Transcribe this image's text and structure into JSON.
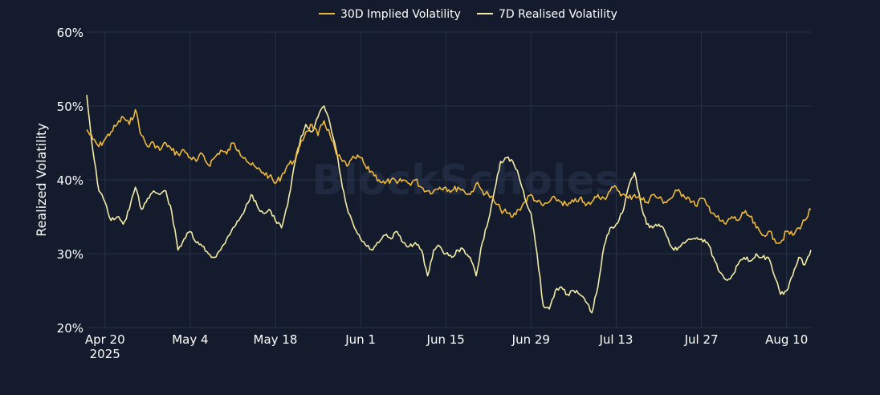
{
  "colors": {
    "background": "#131b2d",
    "grid": "#27334a",
    "text": "#ffffff",
    "watermark": "#2a3550",
    "series_implied": "#f0b93a",
    "series_realised": "#f3eba6"
  },
  "watermark": "BlockScholes",
  "chart_data": {
    "type": "line",
    "title": "",
    "xlabel": "",
    "ylabel": "Realized Volatility",
    "x_range": [
      "2025-04-17",
      "2025-08-14"
    ],
    "ylim": [
      20,
      60
    ],
    "y_ticks": [
      "20%",
      "30%",
      "40%",
      "50%",
      "60%"
    ],
    "x_ticks": [
      {
        "date": "2025-04-20",
        "label": "Apr 20",
        "sublabel": "2025"
      },
      {
        "date": "2025-05-04",
        "label": "May 4",
        "sublabel": ""
      },
      {
        "date": "2025-05-18",
        "label": "May 18",
        "sublabel": ""
      },
      {
        "date": "2025-06-01",
        "label": "Jun 1",
        "sublabel": ""
      },
      {
        "date": "2025-06-15",
        "label": "Jun 15",
        "sublabel": ""
      },
      {
        "date": "2025-06-29",
        "label": "Jun 29",
        "sublabel": ""
      },
      {
        "date": "2025-07-13",
        "label": "Jul 13",
        "sublabel": ""
      },
      {
        "date": "2025-07-27",
        "label": "Jul 27",
        "sublabel": ""
      },
      {
        "date": "2025-08-10",
        "label": "Aug 10",
        "sublabel": ""
      }
    ],
    "grid": true,
    "legend_position": "top-center",
    "series": [
      {
        "name": "30D Implied Volatility",
        "color_key": "series_implied",
        "points": [
          [
            "2025-04-17",
            46.8
          ],
          [
            "2025-04-18",
            45.5
          ],
          [
            "2025-04-19",
            44.5
          ],
          [
            "2025-04-20",
            45.5
          ],
          [
            "2025-04-21",
            46.5
          ],
          [
            "2025-04-22",
            47.5
          ],
          [
            "2025-04-23",
            48.5
          ],
          [
            "2025-04-24",
            47.5
          ],
          [
            "2025-04-25",
            49.5
          ],
          [
            "2025-04-26",
            46.0
          ],
          [
            "2025-04-27",
            44.5
          ],
          [
            "2025-04-28",
            45.0
          ],
          [
            "2025-04-29",
            44.0
          ],
          [
            "2025-04-30",
            45.0
          ],
          [
            "2025-05-01",
            44.0
          ],
          [
            "2025-05-02",
            43.5
          ],
          [
            "2025-05-03",
            44.0
          ],
          [
            "2025-05-04",
            43.0
          ],
          [
            "2025-05-05",
            42.5
          ],
          [
            "2025-05-06",
            43.5
          ],
          [
            "2025-05-07",
            42.0
          ],
          [
            "2025-05-08",
            43.0
          ],
          [
            "2025-05-09",
            44.0
          ],
          [
            "2025-05-10",
            43.5
          ],
          [
            "2025-05-11",
            45.0
          ],
          [
            "2025-05-12",
            44.0
          ],
          [
            "2025-05-13",
            43.0
          ],
          [
            "2025-05-14",
            42.0
          ],
          [
            "2025-05-15",
            41.5
          ],
          [
            "2025-05-16",
            41.0
          ],
          [
            "2025-05-17",
            40.5
          ],
          [
            "2025-05-18",
            39.5
          ],
          [
            "2025-05-19",
            40.5
          ],
          [
            "2025-05-20",
            42.0
          ],
          [
            "2025-05-21",
            42.5
          ],
          [
            "2025-05-22",
            44.5
          ],
          [
            "2025-05-23",
            46.5
          ],
          [
            "2025-05-24",
            47.5
          ],
          [
            "2025-05-25",
            46.0
          ],
          [
            "2025-05-26",
            48.0
          ],
          [
            "2025-05-27",
            46.0
          ],
          [
            "2025-05-28",
            43.5
          ],
          [
            "2025-05-29",
            42.5
          ],
          [
            "2025-05-30",
            42.0
          ],
          [
            "2025-05-31",
            43.0
          ],
          [
            "2025-06-01",
            43.0
          ],
          [
            "2025-06-02",
            41.5
          ],
          [
            "2025-06-03",
            41.0
          ],
          [
            "2025-06-04",
            40.0
          ],
          [
            "2025-06-05",
            39.5
          ],
          [
            "2025-06-06",
            40.0
          ],
          [
            "2025-06-07",
            39.5
          ],
          [
            "2025-06-08",
            40.0
          ],
          [
            "2025-06-09",
            39.5
          ],
          [
            "2025-06-10",
            40.0
          ],
          [
            "2025-06-11",
            39.0
          ],
          [
            "2025-06-12",
            38.5
          ],
          [
            "2025-06-13",
            38.5
          ],
          [
            "2025-06-14",
            39.0
          ],
          [
            "2025-06-15",
            39.0
          ],
          [
            "2025-06-16",
            38.5
          ],
          [
            "2025-06-17",
            39.0
          ],
          [
            "2025-06-18",
            38.5
          ],
          [
            "2025-06-19",
            38.0
          ],
          [
            "2025-06-20",
            39.5
          ],
          [
            "2025-06-21",
            38.5
          ],
          [
            "2025-06-22",
            38.0
          ],
          [
            "2025-06-23",
            37.0
          ],
          [
            "2025-06-24",
            36.0
          ],
          [
            "2025-06-25",
            35.5
          ],
          [
            "2025-06-26",
            35.0
          ],
          [
            "2025-06-27",
            36.0
          ],
          [
            "2025-06-28",
            37.0
          ],
          [
            "2025-06-29",
            38.0
          ],
          [
            "2025-06-30",
            37.0
          ],
          [
            "2025-07-01",
            36.5
          ],
          [
            "2025-07-02",
            37.0
          ],
          [
            "2025-07-03",
            37.5
          ],
          [
            "2025-07-04",
            37.0
          ],
          [
            "2025-07-05",
            36.5
          ],
          [
            "2025-07-06",
            37.0
          ],
          [
            "2025-07-07",
            37.5
          ],
          [
            "2025-07-08",
            36.5
          ],
          [
            "2025-07-09",
            37.0
          ],
          [
            "2025-07-10",
            38.0
          ],
          [
            "2025-07-11",
            37.5
          ],
          [
            "2025-07-12",
            38.5
          ],
          [
            "2025-07-13",
            39.0
          ],
          [
            "2025-07-14",
            38.0
          ],
          [
            "2025-07-15",
            37.5
          ],
          [
            "2025-07-16",
            38.0
          ],
          [
            "2025-07-17",
            37.5
          ],
          [
            "2025-07-18",
            37.0
          ],
          [
            "2025-07-19",
            38.0
          ],
          [
            "2025-07-20",
            37.5
          ],
          [
            "2025-07-21",
            37.0
          ],
          [
            "2025-07-22",
            37.5
          ],
          [
            "2025-07-23",
            38.5
          ],
          [
            "2025-07-24",
            38.0
          ],
          [
            "2025-07-25",
            37.5
          ],
          [
            "2025-07-26",
            36.5
          ],
          [
            "2025-07-27",
            37.5
          ],
          [
            "2025-07-28",
            36.5
          ],
          [
            "2025-07-29",
            35.5
          ],
          [
            "2025-07-30",
            34.5
          ],
          [
            "2025-07-31",
            34.0
          ],
          [
            "2025-08-01",
            35.0
          ],
          [
            "2025-08-02",
            34.5
          ],
          [
            "2025-08-03",
            35.5
          ],
          [
            "2025-08-04",
            35.0
          ],
          [
            "2025-08-05",
            33.5
          ],
          [
            "2025-08-06",
            32.5
          ],
          [
            "2025-08-07",
            33.0
          ],
          [
            "2025-08-08",
            32.0
          ],
          [
            "2025-08-09",
            31.5
          ],
          [
            "2025-08-10",
            33.0
          ],
          [
            "2025-08-11",
            32.5
          ],
          [
            "2025-08-12",
            33.5
          ],
          [
            "2025-08-13",
            34.5
          ],
          [
            "2025-08-14",
            36.0
          ]
        ]
      },
      {
        "name": "7D Realised Volatility",
        "color_key": "series_realised",
        "points": [
          [
            "2025-04-17",
            51.5
          ],
          [
            "2025-04-18",
            44.0
          ],
          [
            "2025-04-19",
            38.5
          ],
          [
            "2025-04-20",
            37.0
          ],
          [
            "2025-04-21",
            34.5
          ],
          [
            "2025-04-22",
            35.0
          ],
          [
            "2025-04-23",
            34.0
          ],
          [
            "2025-04-24",
            36.0
          ],
          [
            "2025-04-25",
            39.0
          ],
          [
            "2025-04-26",
            36.0
          ],
          [
            "2025-04-27",
            37.5
          ],
          [
            "2025-04-28",
            38.5
          ],
          [
            "2025-04-29",
            38.0
          ],
          [
            "2025-04-30",
            38.5
          ],
          [
            "2025-05-01",
            35.5
          ],
          [
            "2025-05-02",
            30.5
          ],
          [
            "2025-05-03",
            32.0
          ],
          [
            "2025-05-04",
            33.0
          ],
          [
            "2025-05-05",
            31.5
          ],
          [
            "2025-05-06",
            31.0
          ],
          [
            "2025-05-07",
            30.0
          ],
          [
            "2025-05-08",
            29.5
          ],
          [
            "2025-05-09",
            30.5
          ],
          [
            "2025-05-10",
            32.0
          ],
          [
            "2025-05-11",
            33.5
          ],
          [
            "2025-05-12",
            34.5
          ],
          [
            "2025-05-13",
            36.0
          ],
          [
            "2025-05-14",
            38.0
          ],
          [
            "2025-05-15",
            36.5
          ],
          [
            "2025-05-16",
            35.5
          ],
          [
            "2025-05-17",
            36.0
          ],
          [
            "2025-05-18",
            34.5
          ],
          [
            "2025-05-19",
            33.5
          ],
          [
            "2025-05-20",
            36.5
          ],
          [
            "2025-05-21",
            41.5
          ],
          [
            "2025-05-22",
            45.0
          ],
          [
            "2025-05-23",
            47.5
          ],
          [
            "2025-05-24",
            46.5
          ],
          [
            "2025-05-25",
            48.5
          ],
          [
            "2025-05-26",
            50.0
          ],
          [
            "2025-05-27",
            47.5
          ],
          [
            "2025-05-28",
            44.0
          ],
          [
            "2025-05-29",
            39.0
          ],
          [
            "2025-05-30",
            35.5
          ],
          [
            "2025-05-31",
            33.5
          ],
          [
            "2025-06-01",
            32.0
          ],
          [
            "2025-06-02",
            31.0
          ],
          [
            "2025-06-03",
            30.5
          ],
          [
            "2025-06-04",
            31.5
          ],
          [
            "2025-06-05",
            32.5
          ],
          [
            "2025-06-06",
            32.0
          ],
          [
            "2025-06-07",
            33.0
          ],
          [
            "2025-06-08",
            31.5
          ],
          [
            "2025-06-09",
            31.0
          ],
          [
            "2025-06-10",
            31.5
          ],
          [
            "2025-06-11",
            30.5
          ],
          [
            "2025-06-12",
            27.0
          ],
          [
            "2025-06-13",
            30.5
          ],
          [
            "2025-06-14",
            31.0
          ],
          [
            "2025-06-15",
            30.0
          ],
          [
            "2025-06-16",
            29.5
          ],
          [
            "2025-06-17",
            30.5
          ],
          [
            "2025-06-18",
            30.5
          ],
          [
            "2025-06-19",
            29.5
          ],
          [
            "2025-06-20",
            27.0
          ],
          [
            "2025-06-21",
            31.5
          ],
          [
            "2025-06-22",
            34.5
          ],
          [
            "2025-06-23",
            38.5
          ],
          [
            "2025-06-24",
            42.5
          ],
          [
            "2025-06-25",
            43.0
          ],
          [
            "2025-06-26",
            42.5
          ],
          [
            "2025-06-27",
            40.5
          ],
          [
            "2025-06-28",
            37.5
          ],
          [
            "2025-06-29",
            35.5
          ],
          [
            "2025-06-30",
            30.0
          ],
          [
            "2025-07-01",
            23.0
          ],
          [
            "2025-07-02",
            22.5
          ],
          [
            "2025-07-03",
            25.0
          ],
          [
            "2025-07-04",
            25.5
          ],
          [
            "2025-07-05",
            24.5
          ],
          [
            "2025-07-06",
            25.0
          ],
          [
            "2025-07-07",
            24.5
          ],
          [
            "2025-07-08",
            23.5
          ],
          [
            "2025-07-09",
            22.0
          ],
          [
            "2025-07-10",
            25.5
          ],
          [
            "2025-07-11",
            31.0
          ],
          [
            "2025-07-12",
            33.5
          ],
          [
            "2025-07-13",
            34.0
          ],
          [
            "2025-07-14",
            35.5
          ],
          [
            "2025-07-15",
            39.0
          ],
          [
            "2025-07-16",
            41.0
          ],
          [
            "2025-07-17",
            37.0
          ],
          [
            "2025-07-18",
            34.0
          ],
          [
            "2025-07-19",
            33.5
          ],
          [
            "2025-07-20",
            34.0
          ],
          [
            "2025-07-21",
            33.0
          ],
          [
            "2025-07-22",
            31.0
          ],
          [
            "2025-07-23",
            30.5
          ],
          [
            "2025-07-24",
            31.5
          ],
          [
            "2025-07-25",
            32.0
          ],
          [
            "2025-07-26",
            32.0
          ],
          [
            "2025-07-27",
            32.0
          ],
          [
            "2025-07-28",
            31.5
          ],
          [
            "2025-07-29",
            29.5
          ],
          [
            "2025-07-30",
            27.5
          ],
          [
            "2025-07-31",
            26.5
          ],
          [
            "2025-08-01",
            27.0
          ],
          [
            "2025-08-02",
            28.5
          ],
          [
            "2025-08-03",
            29.5
          ],
          [
            "2025-08-04",
            29.0
          ],
          [
            "2025-08-05",
            30.0
          ],
          [
            "2025-08-06",
            29.5
          ],
          [
            "2025-08-07",
            29.5
          ],
          [
            "2025-08-08",
            27.0
          ],
          [
            "2025-08-09",
            24.5
          ],
          [
            "2025-08-10",
            25.0
          ],
          [
            "2025-08-11",
            27.0
          ],
          [
            "2025-08-12",
            29.5
          ],
          [
            "2025-08-13",
            28.5
          ],
          [
            "2025-08-14",
            30.5
          ]
        ]
      }
    ]
  }
}
